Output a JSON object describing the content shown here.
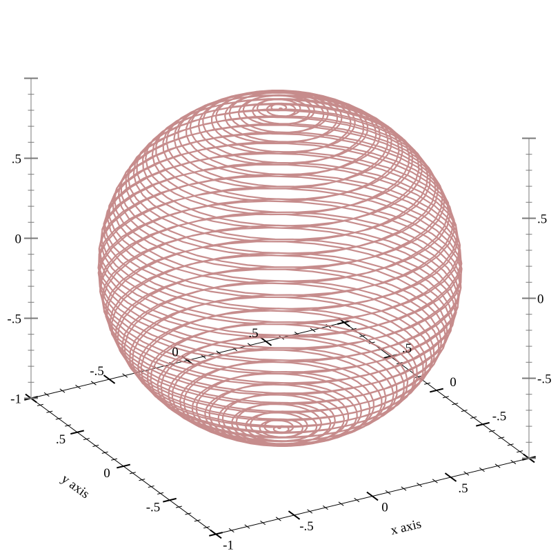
{
  "chart_data": {
    "type": "line",
    "subtype": "parametric3d",
    "title": "",
    "xlabel": "x axis",
    "ylabel": "y axis",
    "zlabel": "",
    "xlim": [
      -1,
      1
    ],
    "ylim": [
      -1,
      1
    ],
    "zlim": [
      -1,
      1
    ],
    "curve": {
      "x": "cos(80t)·cos(t)",
      "y": "sin(80t)·cos(t)",
      "z": "sin(t)",
      "t_range": [
        -3.14159,
        3.14159
      ],
      "color": "#c07f7f"
    },
    "ticks": {
      "x_front": [
        {
          "v": -1,
          "label": "-1"
        },
        {
          "v": -0.5,
          "label": "-.5"
        },
        {
          "v": 0,
          "label": "0"
        },
        {
          "v": 0.5,
          "label": ".5"
        }
      ],
      "x_back": [
        {
          "v": -0.5,
          "label": "-.5"
        },
        {
          "v": 0,
          "label": "0"
        },
        {
          "v": 0.5,
          "label": ".5"
        }
      ],
      "y_front": [
        {
          "v": 0.5,
          "label": ".5"
        },
        {
          "v": 0,
          "label": "0"
        },
        {
          "v": -0.5,
          "label": "-.5"
        }
      ],
      "y_back": [
        {
          "v": 0.5,
          "label": ".5"
        },
        {
          "v": 0,
          "label": "0"
        },
        {
          "v": -0.5,
          "label": "-.5"
        }
      ],
      "z_left": [
        {
          "v": 0.5,
          "label": ".5"
        },
        {
          "v": 0,
          "label": "0"
        },
        {
          "v": -0.5,
          "label": "-.5"
        },
        {
          "v": -1,
          "label": "-1"
        }
      ],
      "z_right": [
        {
          "v": 0.5,
          "label": ".5"
        },
        {
          "v": 0,
          "label": "0"
        },
        {
          "v": -0.5,
          "label": "-.5"
        }
      ]
    },
    "grid": false,
    "legend": "none",
    "axis_color": "#000000",
    "z_axis_color": "#777777"
  }
}
